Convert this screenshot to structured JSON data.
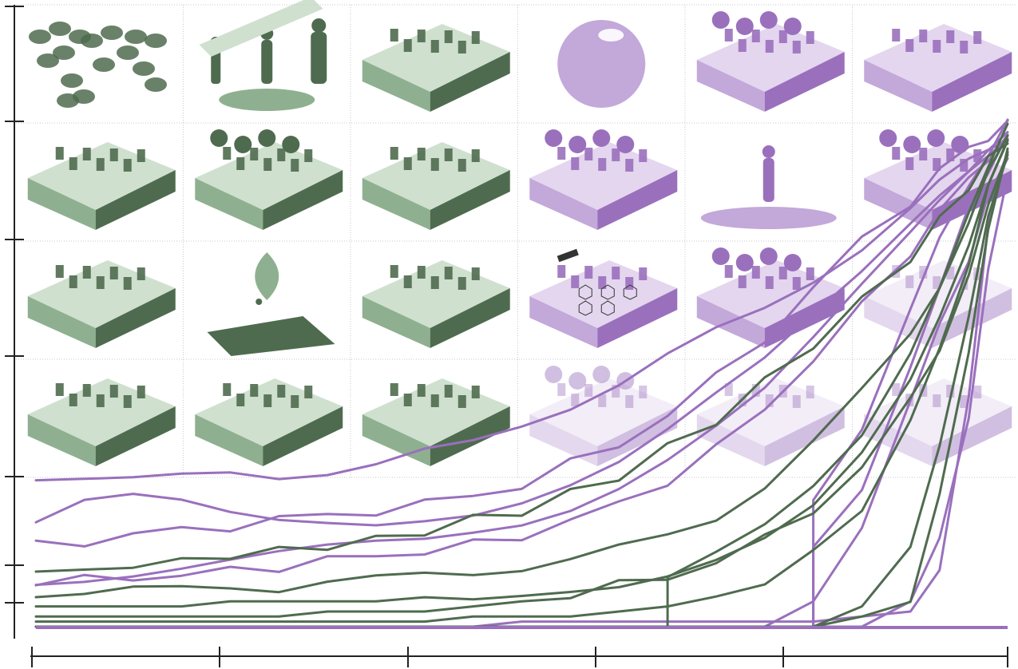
{
  "colors": {
    "green": "#4f6b4f",
    "green_light": "#8fb090",
    "green_pale": "#cfe0cf",
    "purple": "#9a70bd",
    "purple_light": "#c3a8da",
    "purple_pale": "#e3d6ee",
    "grid": "#c9c9c9",
    "axis": "#222222"
  },
  "panels": [
    {
      "name": "world-map-icon",
      "tint": "green"
    },
    {
      "name": "human-growth-icon",
      "tint": "green"
    },
    {
      "name": "farmland-icon",
      "tint": "green"
    },
    {
      "name": "ozone-sphere-icon",
      "tint": "purple"
    },
    {
      "name": "urban-block-icon",
      "tint": "purple"
    },
    {
      "name": "ocean-sediment-icon",
      "tint": "purple"
    },
    {
      "name": "airplane-travel-icon",
      "tint": "green"
    },
    {
      "name": "energy-industry-icon",
      "tint": "green"
    },
    {
      "name": "soil-layer-icon",
      "tint": "green"
    },
    {
      "name": "factory-island-icon",
      "tint": "purple"
    },
    {
      "name": "person-on-island-icon",
      "tint": "purple"
    },
    {
      "name": "coastal-terrain-icon",
      "tint": "purple"
    },
    {
      "name": "open-pit-mine-icon",
      "tint": "green"
    },
    {
      "name": "water-drop-icon",
      "tint": "green"
    },
    {
      "name": "reservoir-dam-icon",
      "tint": "green"
    },
    {
      "name": "satellite-fishing-icon",
      "tint": "purple"
    },
    {
      "name": "forest-clearing-icon",
      "tint": "purple"
    },
    {
      "name": "faded-landscape-icon",
      "tint": "purple"
    },
    {
      "name": "city-buildings-icon",
      "tint": "green"
    },
    {
      "name": "power-grid-icon",
      "tint": "green"
    },
    {
      "name": "fish-school-icon",
      "tint": "green"
    },
    {
      "name": "rainforest-icon",
      "tint": "purple"
    },
    {
      "name": "faded-fields-icon",
      "tint": "purple"
    },
    {
      "name": "faded-terrain-icon",
      "tint": "purple"
    }
  ],
  "chart_data": {
    "type": "line",
    "title": "",
    "xlabel": "",
    "ylabel": "",
    "x_tick_count": 6,
    "y_tick_count": 7,
    "grid": true,
    "legend": "none",
    "x": [
      0,
      0.05,
      0.1,
      0.15,
      0.2,
      0.25,
      0.3,
      0.35,
      0.4,
      0.45,
      0.5,
      0.55,
      0.6,
      0.65,
      0.7,
      0.75,
      0.8,
      0.85,
      0.9,
      0.93,
      0.96,
      0.98,
      1.0
    ],
    "series": [
      {
        "color": "purple",
        "values": [
          0.3,
          0.3,
          0.29,
          0.29,
          0.3,
          0.3,
          0.31,
          0.32,
          0.34,
          0.36,
          0.4,
          0.44,
          0.48,
          0.53,
          0.58,
          0.63,
          0.69,
          0.75,
          0.82,
          0.87,
          0.92,
          0.95,
          0.97
        ]
      },
      {
        "color": "purple",
        "values": [
          0.2,
          0.24,
          0.25,
          0.24,
          0.22,
          0.21,
          0.21,
          0.21,
          0.22,
          0.23,
          0.25,
          0.28,
          0.32,
          0.38,
          0.45,
          0.52,
          0.61,
          0.7,
          0.8,
          0.86,
          0.91,
          0.94,
          0.97
        ]
      },
      {
        "color": "purple",
        "values": [
          0.16,
          0.17,
          0.18,
          0.19,
          0.2,
          0.21,
          0.22,
          0.23,
          0.24,
          0.26,
          0.28,
          0.32,
          0.36,
          0.42,
          0.49,
          0.57,
          0.67,
          0.76,
          0.84,
          0.9,
          0.94,
          0.97,
          0.99
        ]
      },
      {
        "color": "purple",
        "values": [
          0.09,
          0.09,
          0.1,
          0.1,
          0.11,
          0.12,
          0.13,
          0.14,
          0.15,
          0.16,
          0.18,
          0.21,
          0.24,
          0.29,
          0.35,
          0.43,
          0.53,
          0.63,
          0.74,
          0.82,
          0.88,
          0.93,
          0.96
        ]
      },
      {
        "color": "purple",
        "values": [
          0.09,
          0.1,
          0.11,
          0.12,
          0.13,
          0.14,
          0.15,
          0.16,
          0.17,
          0.19,
          0.21,
          0.24,
          0.28,
          0.33,
          0.39,
          0.46,
          0.56,
          0.67,
          0.78,
          0.85,
          0.91,
          0.95,
          0.98
        ]
      },
      {
        "color": "purple",
        "values": [
          0.0,
          0.0,
          0.0,
          0.0,
          0.0,
          0.0,
          0.0,
          0.0,
          0.0,
          0.0,
          0.01,
          0.01,
          0.01,
          0.01,
          0.01,
          0.01,
          0.01,
          0.02,
          0.03,
          0.1,
          0.45,
          0.8,
          0.95
        ]
      },
      {
        "color": "purple",
        "values": [
          0.0,
          0.0,
          0.0,
          0.0,
          0.0,
          0.0,
          0.0,
          0.0,
          0.0,
          0.0,
          0.0,
          0.0,
          0.0,
          0.0,
          0.0,
          0.0,
          0.15,
          0.28,
          0.5,
          0.68,
          0.82,
          0.9,
          0.97
        ]
      },
      {
        "color": "purple",
        "values": [
          0.0,
          0.0,
          0.0,
          0.0,
          0.0,
          0.0,
          0.0,
          0.0,
          0.0,
          0.0,
          0.0,
          0.0,
          0.0,
          0.0,
          0.0,
          0.0,
          0.25,
          0.4,
          0.62,
          0.76,
          0.88,
          0.93,
          0.99
        ]
      },
      {
        "color": "purple",
        "values": [
          0.0,
          0.0,
          0.0,
          0.0,
          0.0,
          0.0,
          0.0,
          0.0,
          0.0,
          0.0,
          0.0,
          0.0,
          0.0,
          0.0,
          0.0,
          0.0,
          0.05,
          0.2,
          0.45,
          0.6,
          0.72,
          0.85,
          0.92
        ]
      },
      {
        "color": "purple",
        "values": [
          0.0,
          0.0,
          0.0,
          0.0,
          0.0,
          0.0,
          0.0,
          0.0,
          0.0,
          0.0,
          0.0,
          0.0,
          0.0,
          0.0,
          0.0,
          0.0,
          0.0,
          0.0,
          0.05,
          0.18,
          0.4,
          0.7,
          0.9
        ]
      },
      {
        "color": "green",
        "values": [
          0.11,
          0.11,
          0.12,
          0.13,
          0.14,
          0.15,
          0.16,
          0.17,
          0.19,
          0.21,
          0.23,
          0.26,
          0.3,
          0.35,
          0.41,
          0.48,
          0.56,
          0.64,
          0.73,
          0.8,
          0.87,
          0.92,
          0.96
        ]
      },
      {
        "color": "green",
        "values": [
          0.07,
          0.07,
          0.07,
          0.07,
          0.08,
          0.08,
          0.09,
          0.09,
          0.1,
          0.11,
          0.12,
          0.13,
          0.15,
          0.18,
          0.22,
          0.28,
          0.36,
          0.46,
          0.58,
          0.68,
          0.8,
          0.89,
          0.96
        ]
      },
      {
        "color": "green",
        "values": [
          0.04,
          0.04,
          0.04,
          0.04,
          0.05,
          0.05,
          0.05,
          0.05,
          0.06,
          0.06,
          0.07,
          0.08,
          0.09,
          0.11,
          0.14,
          0.18,
          0.24,
          0.34,
          0.48,
          0.6,
          0.74,
          0.86,
          0.95
        ]
      },
      {
        "color": "green",
        "values": [
          0.02,
          0.02,
          0.02,
          0.02,
          0.02,
          0.02,
          0.03,
          0.03,
          0.03,
          0.04,
          0.05,
          0.06,
          0.08,
          0.1,
          0.13,
          0.17,
          0.23,
          0.32,
          0.44,
          0.55,
          0.7,
          0.82,
          0.94
        ]
      },
      {
        "color": "green",
        "values": [
          0.01,
          0.01,
          0.01,
          0.01,
          0.01,
          0.01,
          0.01,
          0.01,
          0.01,
          0.02,
          0.02,
          0.02,
          0.03,
          0.04,
          0.06,
          0.09,
          0.14,
          0.24,
          0.4,
          0.55,
          0.72,
          0.86,
          0.97
        ]
      },
      {
        "color": "green",
        "values": [
          0.0,
          0.0,
          0.0,
          0.0,
          0.0,
          0.0,
          0.0,
          0.0,
          0.0,
          0.0,
          0.0,
          0.0,
          0.0,
          0.0,
          0.0,
          0.0,
          0.0,
          0.04,
          0.16,
          0.35,
          0.6,
          0.8,
          0.93
        ]
      },
      {
        "color": "green",
        "values": [
          0.0,
          0.0,
          0.0,
          0.0,
          0.0,
          0.0,
          0.0,
          0.0,
          0.0,
          0.0,
          0.0,
          0.0,
          0.0,
          0.1,
          0.14,
          0.19,
          0.27,
          0.38,
          0.55,
          0.68,
          0.82,
          0.9,
          0.98
        ]
      },
      {
        "color": "green",
        "values": [
          0.0,
          0.0,
          0.0,
          0.0,
          0.0,
          0.0,
          0.0,
          0.0,
          0.0,
          0.0,
          0.0,
          0.0,
          0.0,
          0.0,
          0.0,
          0.0,
          0.0,
          0.02,
          0.06,
          0.25,
          0.55,
          0.78,
          0.94
        ]
      }
    ]
  }
}
